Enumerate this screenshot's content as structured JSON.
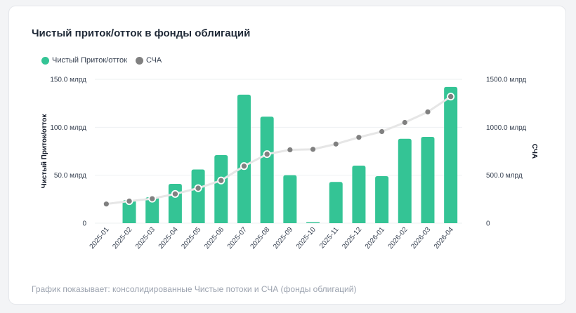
{
  "card": {
    "title": "Чистый приток/отток в фонды облигаций",
    "caption": "График показывает: консолидированные Чистые потоки и СЧА (фонды облигаций)"
  },
  "chart_data": {
    "type": "bar",
    "title": "Чистый приток/отток в фонды облигаций",
    "categories": [
      "2025-01",
      "2025-02",
      "2025-03",
      "2025-04",
      "2025-05",
      "2025-06",
      "2025-07",
      "2025-08",
      "2025-09",
      "2025-10",
      "2025-11",
      "2025-12",
      "2026-01",
      "2026-02",
      "2026-03",
      "2026-04"
    ],
    "series": [
      {
        "name": "Чистый Приток/отток",
        "type": "bar",
        "axis": "left",
        "color": "#34c495",
        "values": [
          0,
          24,
          27,
          41,
          56,
          71,
          134,
          111,
          50,
          1,
          43,
          60,
          49,
          88,
          90,
          142
        ]
      },
      {
        "name": "СЧА",
        "type": "line",
        "axis": "right",
        "color": "#808080",
        "values": [
          200,
          230,
          255,
          305,
          365,
          445,
          595,
          720,
          765,
          770,
          825,
          895,
          955,
          1050,
          1160,
          1320
        ]
      }
    ],
    "y_left": {
      "label": "Чистый Приток/отток",
      "min": 0,
      "max": 150,
      "ticks": [
        "0",
        "50.0 млрд",
        "100.0 млрд",
        "150.0 млрд"
      ]
    },
    "y_right": {
      "label": "СЧА",
      "min": 0,
      "max": 1500,
      "ticks": [
        "0",
        "500.0 млрд",
        "1000.0 млрд",
        "1500.0 млрд"
      ]
    },
    "grid": true,
    "legend": "top-left"
  }
}
